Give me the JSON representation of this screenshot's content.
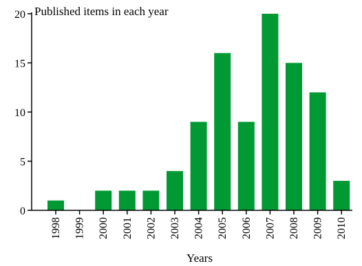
{
  "chart_data": {
    "type": "bar",
    "title": "Published items in each year",
    "xlabel": "Years",
    "ylabel": "",
    "categories": [
      "1998",
      "1999",
      "2000",
      "2001",
      "2002",
      "2003",
      "2004",
      "2005",
      "2006",
      "2007",
      "2008",
      "2009",
      "2010"
    ],
    "values": [
      1,
      0,
      2,
      2,
      2,
      4,
      9,
      16,
      9,
      20,
      15,
      12,
      3
    ],
    "ylim": [
      0,
      20
    ],
    "yticks": [
      0,
      5,
      10,
      15,
      20
    ],
    "grid": false,
    "legend": "none",
    "bar_color": "#009933",
    "axis_color": "#000000"
  }
}
